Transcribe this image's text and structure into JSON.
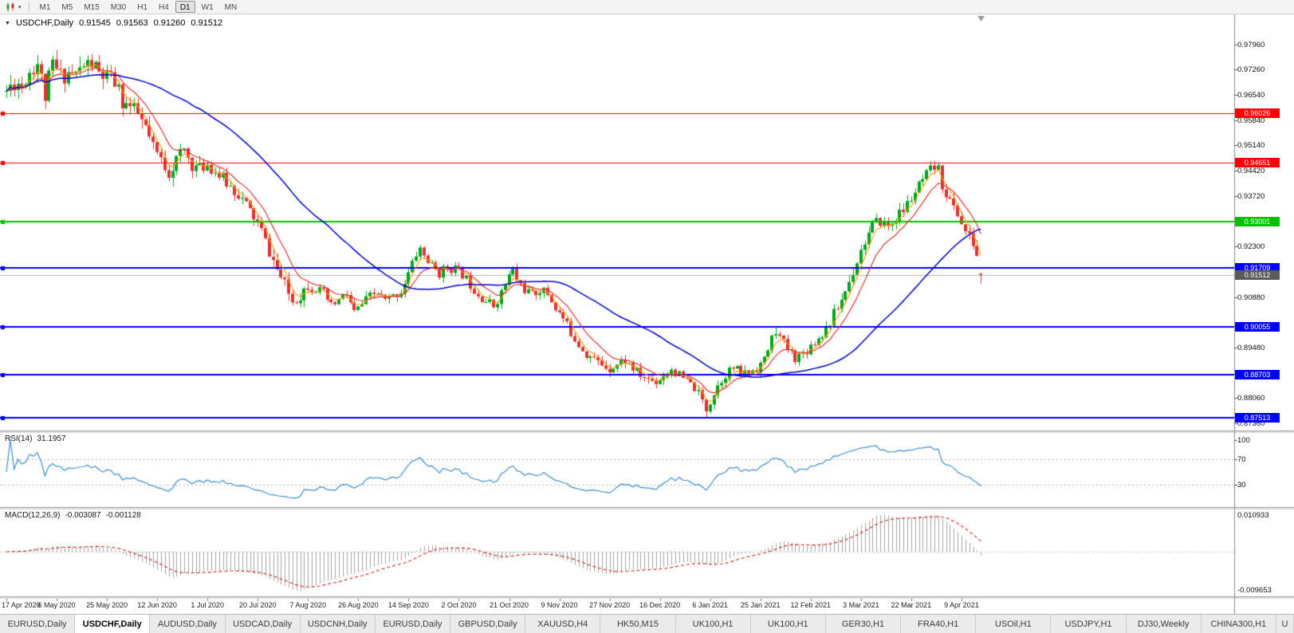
{
  "toolbar": {
    "timeframes": [
      {
        "label": "M1",
        "active": false
      },
      {
        "label": "M5",
        "active": false
      },
      {
        "label": "M15",
        "active": false
      },
      {
        "label": "M30",
        "active": false
      },
      {
        "label": "H1",
        "active": false
      },
      {
        "label": "H4",
        "active": false
      },
      {
        "label": "D1",
        "active": true
      },
      {
        "label": "W1",
        "active": false
      },
      {
        "label": "MN",
        "active": false
      }
    ]
  },
  "chart": {
    "symbol_label": "USDCHF,Daily",
    "open": "0.91545",
    "high": "0.91563",
    "low": "0.91260",
    "close": "0.91512"
  },
  "price_axis": {
    "ticks": [
      "0.97960",
      "0.97260",
      "0.96540",
      "0.95840",
      "0.95140",
      "0.94420",
      "0.93720",
      "0.92300",
      "0.90880",
      "0.89480",
      "0.88060",
      "0.87360"
    ]
  },
  "levels": [
    {
      "price": 0.96026,
      "label": "0.96026",
      "color": "#ff0000",
      "width": 1
    },
    {
      "price": 0.94651,
      "label": "0.94651",
      "color": "#ff0000",
      "width": 1
    },
    {
      "price": 0.93001,
      "label": "0.93001",
      "color": "#00c200",
      "width": 2
    },
    {
      "price": 0.91709,
      "label": "0.91709",
      "color": "#0000ff",
      "width": 2
    },
    {
      "price": 0.90055,
      "label": "0.90055",
      "color": "#0000ff",
      "width": 2
    },
    {
      "price": 0.88703,
      "label": "0.88703",
      "color": "#0000ff",
      "width": 2
    },
    {
      "price": 0.87513,
      "label": "0.87513",
      "color": "#0000ff",
      "width": 2
    }
  ],
  "current_price": {
    "value": 0.91512,
    "label": "0.91512",
    "color": "#5a5a5a"
  },
  "rsi": {
    "name": "RSI(14)",
    "value": "31.1957",
    "line_color": "#3d8ece",
    "ticks": [
      {
        "label": "100",
        "value": 100
      },
      {
        "label": "70",
        "value": 70
      },
      {
        "label": "30",
        "value": 30
      }
    ],
    "guides": [
      70,
      30
    ]
  },
  "macd": {
    "name": "MACD(12,26,9)",
    "main_value": "-0.003087",
    "signal_value": "-0.001128",
    "axis_max": "0.010933",
    "axis_min": "-0.009653",
    "histogram_color": "#a4a4a4",
    "signal_color": "#cc2222"
  },
  "date_axis": [
    "17 Apr 2020",
    "6 May 2020",
    "25 May 2020",
    "12 Jun 2020",
    "1 Jul 2020",
    "20 Jul 2020",
    "7 Aug 2020",
    "26 Aug 2020",
    "14 Sep 2020",
    "2 Oct 2020",
    "21 Oct 2020",
    "9 Nov 2020",
    "27 Nov 2020",
    "16 Dec 2020",
    "6 Jan 2021",
    "25 Jan 2021",
    "12 Feb 2021",
    "3 Mar 2021",
    "22 Mar 2021",
    "9 Apr 2021"
  ],
  "tabs": [
    {
      "label": "EURUSD,Daily",
      "active": false
    },
    {
      "label": "USDCHF,Daily",
      "active": true
    },
    {
      "label": "AUDUSD,Daily",
      "active": false
    },
    {
      "label": "USDCAD,Daily",
      "active": false
    },
    {
      "label": "USDCNH,Daily",
      "active": false
    },
    {
      "label": "EURUSD,Daily",
      "active": false
    },
    {
      "label": "GBPUSD,Daily",
      "active": false
    },
    {
      "label": "XAUUSD,H4",
      "active": false
    },
    {
      "label": "HK50,M15",
      "active": false
    },
    {
      "label": "UK100,H1",
      "active": false
    },
    {
      "label": "UK100,H1",
      "active": false
    },
    {
      "label": "GER30,H1",
      "active": false
    },
    {
      "label": "FRA40,H1",
      "active": false
    },
    {
      "label": "USOil,H1",
      "active": false
    },
    {
      "label": "USDJPY,H1",
      "active": false
    },
    {
      "label": "DJ30,Weekly",
      "active": false
    },
    {
      "label": "CHINA300,H1",
      "active": false
    },
    {
      "label": "U",
      "active": false,
      "truncated": true
    }
  ],
  "chart_data": {
    "type": "candlestick",
    "symbol": "USDCHF",
    "timeframe": "Daily",
    "title": "USDCHF,Daily",
    "y_range": [
      0.8715,
      0.988
    ],
    "candle_count": 253,
    "label_step": 13,
    "seed": 11,
    "up_color": "#00a51e",
    "down_color": "#e03434",
    "x_labels": [
      "17 Apr 2020",
      "6 May 2020",
      "25 May 2020",
      "12 Jun 2020",
      "1 Jul 2020",
      "20 Jul 2020",
      "7 Aug 2020",
      "26 Aug 2020",
      "14 Sep 2020",
      "2 Oct 2020",
      "21 Oct 2020",
      "9 Nov 2020",
      "27 Nov 2020",
      "16 Dec 2020",
      "6 Jan 2021",
      "25 Jan 2021",
      "12 Feb 2021",
      "3 Mar 2021",
      "22 Mar 2021",
      "9 Apr 2021"
    ],
    "last_candle": {
      "open": 0.91545,
      "high": 0.91563,
      "low": 0.9126,
      "close": 0.91512
    },
    "support_resistance": [
      0.96026,
      0.94651,
      0.93001,
      0.91709,
      0.90055,
      0.88703,
      0.87513
    ],
    "trend_anchors": [
      [
        0,
        0.9665
      ],
      [
        2,
        0.9692
      ],
      [
        4,
        0.9684
      ],
      [
        6,
        0.9722
      ],
      [
        8,
        0.9745
      ],
      [
        10,
        0.9652
      ],
      [
        12,
        0.974
      ],
      [
        14,
        0.9708
      ],
      [
        16,
        0.9718
      ],
      [
        18,
        0.9712
      ],
      [
        20,
        0.9736
      ],
      [
        22,
        0.9742
      ],
      [
        24,
        0.9713
      ],
      [
        26,
        0.97
      ],
      [
        28,
        0.9688
      ],
      [
        30,
        0.9638
      ],
      [
        32,
        0.962
      ],
      [
        34,
        0.9598
      ],
      [
        36,
        0.956
      ],
      [
        38,
        0.9502
      ],
      [
        40,
        0.9472
      ],
      [
        42,
        0.9442
      ],
      [
        44,
        0.9472
      ],
      [
        46,
        0.95
      ],
      [
        48,
        0.9458
      ],
      [
        50,
        0.9448
      ],
      [
        52,
        0.9462
      ],
      [
        54,
        0.944
      ],
      [
        56,
        0.9418
      ],
      [
        58,
        0.9398
      ],
      [
        60,
        0.9378
      ],
      [
        62,
        0.9345
      ],
      [
        64,
        0.9312
      ],
      [
        66,
        0.9272
      ],
      [
        68,
        0.9215
      ],
      [
        70,
        0.9165
      ],
      [
        72,
        0.912
      ],
      [
        74,
        0.9078
      ],
      [
        76,
        0.9095
      ],
      [
        78,
        0.9125
      ],
      [
        80,
        0.9112
      ],
      [
        82,
        0.9098
      ],
      [
        84,
        0.9062
      ],
      [
        86,
        0.908
      ],
      [
        88,
        0.9096
      ],
      [
        90,
        0.9045
      ],
      [
        92,
        0.9068
      ],
      [
        94,
        0.909
      ],
      [
        96,
        0.91
      ],
      [
        98,
        0.9078
      ],
      [
        100,
        0.909
      ],
      [
        102,
        0.9106
      ],
      [
        104,
        0.9155
      ],
      [
        106,
        0.9208
      ],
      [
        107,
        0.9226
      ],
      [
        108,
        0.9204
      ],
      [
        110,
        0.9175
      ],
      [
        112,
        0.9155
      ],
      [
        114,
        0.9172
      ],
      [
        116,
        0.9168
      ],
      [
        118,
        0.9152
      ],
      [
        120,
        0.9124
      ],
      [
        122,
        0.9098
      ],
      [
        124,
        0.9078
      ],
      [
        126,
        0.9064
      ],
      [
        128,
        0.91
      ],
      [
        130,
        0.9148
      ],
      [
        131,
        0.9162
      ],
      [
        132,
        0.9138
      ],
      [
        134,
        0.911
      ],
      [
        136,
        0.9094
      ],
      [
        138,
        0.911
      ],
      [
        140,
        0.9098
      ],
      [
        142,
        0.9058
      ],
      [
        144,
        0.9028
      ],
      [
        146,
        0.899
      ],
      [
        148,
        0.8958
      ],
      [
        150,
        0.893
      ],
      [
        152,
        0.8914
      ],
      [
        154,
        0.89
      ],
      [
        156,
        0.889
      ],
      [
        158,
        0.89
      ],
      [
        160,
        0.8912
      ],
      [
        162,
        0.8888
      ],
      [
        164,
        0.8868
      ],
      [
        166,
        0.8858
      ],
      [
        168,
        0.8852
      ],
      [
        170,
        0.887
      ],
      [
        172,
        0.8888
      ],
      [
        174,
        0.8868
      ],
      [
        176,
        0.8852
      ],
      [
        178,
        0.8834
      ],
      [
        180,
        0.8798
      ],
      [
        181,
        0.8775
      ],
      [
        182,
        0.8798
      ],
      [
        184,
        0.8842
      ],
      [
        186,
        0.8874
      ],
      [
        188,
        0.889
      ],
      [
        190,
        0.8874
      ],
      [
        192,
        0.8878
      ],
      [
        194,
        0.8892
      ],
      [
        196,
        0.8912
      ],
      [
        198,
        0.8972
      ],
      [
        199,
        0.8996
      ],
      [
        200,
        0.8974
      ],
      [
        202,
        0.8944
      ],
      [
        204,
        0.892
      ],
      [
        206,
        0.893
      ],
      [
        208,
        0.8954
      ],
      [
        210,
        0.8974
      ],
      [
        212,
        0.9
      ],
      [
        214,
        0.904
      ],
      [
        216,
        0.9082
      ],
      [
        218,
        0.9132
      ],
      [
        220,
        0.9192
      ],
      [
        222,
        0.9246
      ],
      [
        224,
        0.9286
      ],
      [
        226,
        0.9302
      ],
      [
        228,
        0.9286
      ],
      [
        230,
        0.931
      ],
      [
        232,
        0.9332
      ],
      [
        234,
        0.9366
      ],
      [
        236,
        0.9398
      ],
      [
        238,
        0.9428
      ],
      [
        240,
        0.9452
      ],
      [
        241,
        0.9442
      ],
      [
        242,
        0.9404
      ],
      [
        244,
        0.9356
      ],
      [
        246,
        0.9322
      ],
      [
        248,
        0.9272
      ],
      [
        250,
        0.9238
      ],
      [
        251,
        0.9205
      ],
      [
        252,
        0.9152
      ]
    ],
    "moving_averages": [
      {
        "type": "ema",
        "period": 4,
        "color": "#ff9c00"
      },
      {
        "type": "ema",
        "period": 10,
        "color": "#e03232"
      },
      {
        "type": "sma",
        "period": 40,
        "color": "#0000c8"
      }
    ],
    "indicators": {
      "rsi": {
        "period": 14,
        "current": 31.1957,
        "range": [
          0,
          100
        ],
        "guides": [
          70,
          30
        ]
      },
      "macd": {
        "fast": 12,
        "slow": 26,
        "signal_period": 9,
        "current_main": -0.003087,
        "current_signal": -0.001128,
        "scale_max": 0.010933,
        "scale_min": -0.009653
      }
    }
  }
}
